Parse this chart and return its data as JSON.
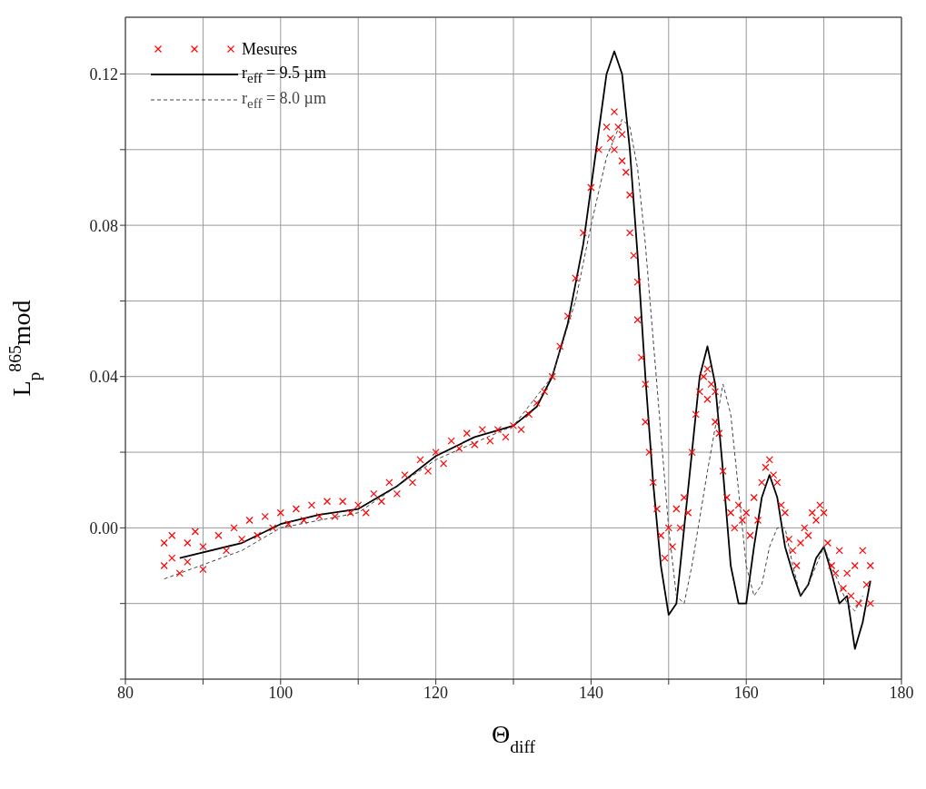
{
  "chart_data": {
    "type": "scatter",
    "xlabel": "Θ$_{diff}$",
    "ylabel": "L$_{p}$$^{865}$mod",
    "xlim": [
      80,
      180
    ],
    "xticks": [
      80,
      {
        "value": 90,
        "label": null
      },
      100,
      {
        "value": 110,
        "label": null
      },
      120,
      {
        "value": 130,
        "label": null
      },
      140,
      {
        "value": 150,
        "label": null
      },
      160,
      {
        "value": 170,
        "label": null
      },
      180
    ],
    "ylim": [
      -0.04,
      0.135
    ],
    "yticks": [
      {
        "value": -0.04,
        "label": null
      },
      {
        "value": -0.02,
        "label": null
      },
      {
        "value": 0,
        "label": "0.00"
      },
      {
        "value": 0.02,
        "label": null
      },
      {
        "value": 0.04,
        "label": "0.04"
      },
      {
        "value": 0.06,
        "label": null
      },
      {
        "value": 0.08,
        "label": "0.08"
      },
      {
        "value": 0.1,
        "label": null
      },
      {
        "value": 0.12,
        "label": "0.12"
      }
    ],
    "grid": true,
    "legend": "top left",
    "series": [
      {
        "name": "Mesures",
        "marker": "cross",
        "color": "#ff0000",
        "x": [
          85,
          85,
          86,
          86,
          87,
          88,
          88,
          89,
          90,
          90,
          92,
          93,
          94,
          95,
          96,
          97,
          98,
          99,
          100,
          101,
          102,
          103,
          104,
          105,
          106,
          107,
          108,
          109,
          110,
          111,
          112,
          113,
          114,
          115,
          116,
          117,
          118,
          119,
          120,
          121,
          122,
          123,
          124,
          125,
          126,
          127,
          128,
          129,
          130,
          131,
          132,
          133,
          134,
          135,
          136,
          137,
          138,
          139,
          140,
          141,
          142,
          142.5,
          143,
          143,
          143.5,
          144,
          144,
          144.5,
          145,
          145,
          145.5,
          146,
          146,
          146.5,
          147,
          147,
          147.5,
          148,
          148.5,
          149,
          149.5,
          150,
          150.5,
          151,
          151.5,
          152,
          152.5,
          153,
          153.5,
          154,
          154.5,
          155,
          155,
          155.5,
          156,
          156,
          156.5,
          157,
          157.5,
          158,
          158.5,
          159,
          159.5,
          160,
          160.5,
          161,
          161.5,
          162,
          162.5,
          163,
          163.5,
          164,
          164.5,
          165,
          165.5,
          166,
          166.5,
          167,
          167.5,
          168,
          168.5,
          169,
          169.5,
          170,
          170.5,
          171,
          171.5,
          172,
          172.5,
          173,
          173.5,
          174,
          174.5,
          175,
          175.5,
          176,
          176
        ],
        "values": [
          -0.004,
          -0.01,
          -0.002,
          -0.008,
          -0.012,
          -0.004,
          -0.009,
          -0.001,
          -0.005,
          -0.011,
          -0.002,
          -0.006,
          0,
          -0.003,
          0.002,
          -0.002,
          0.003,
          0,
          0.004,
          0.001,
          0.005,
          0.002,
          0.006,
          0.003,
          0.007,
          0.003,
          0.007,
          0.004,
          0.006,
          0.004,
          0.009,
          0.007,
          0.012,
          0.009,
          0.014,
          0.012,
          0.018,
          0.015,
          0.02,
          0.017,
          0.023,
          0.021,
          0.025,
          0.022,
          0.026,
          0.023,
          0.026,
          0.024,
          0.027,
          0.026,
          0.03,
          0.033,
          0.036,
          0.04,
          0.048,
          0.056,
          0.066,
          0.078,
          0.09,
          0.1,
          0.106,
          0.103,
          0.11,
          0.1,
          0.106,
          0.104,
          0.097,
          0.094,
          0.088,
          0.078,
          0.072,
          0.065,
          0.055,
          0.045,
          0.038,
          0.028,
          0.02,
          0.012,
          0.005,
          -0.002,
          -0.008,
          0,
          -0.005,
          0.005,
          0,
          0.008,
          0.004,
          0.02,
          0.03,
          0.036,
          0.04,
          0.042,
          0.034,
          0.038,
          0.036,
          0.028,
          0.025,
          0.015,
          0.008,
          0.004,
          0,
          0.006,
          0.002,
          0.004,
          -0.002,
          0.008,
          0.002,
          0.012,
          0.016,
          0.018,
          0.014,
          0.012,
          0.006,
          0.004,
          -0.003,
          -0.006,
          -0.01,
          -0.004,
          0,
          -0.002,
          0.004,
          0.002,
          0.006,
          0.004,
          -0.004,
          -0.01,
          -0.012,
          -0.006,
          -0.016,
          -0.012,
          -0.018,
          -0.01,
          -0.02,
          -0.006,
          -0.015,
          -0.02,
          -0.01
        ]
      },
      {
        "name": "r$_{eff}$ = 9.5 µm",
        "type": "line",
        "line_style": "solid",
        "color": "#000000",
        "x": [
          87,
          95,
          100,
          105,
          110,
          115,
          120,
          125,
          130,
          133,
          135,
          137,
          139,
          141,
          142,
          143,
          144,
          145,
          146,
          147,
          148,
          149,
          150,
          151,
          152,
          153,
          154,
          155,
          156,
          157,
          158,
          159,
          160,
          161,
          162,
          163,
          164,
          165,
          166,
          167,
          168,
          169,
          170,
          171,
          172,
          173,
          174,
          175,
          176
        ],
        "values": [
          -0.008,
          -0.004,
          0.001,
          0.0035,
          0.005,
          0.011,
          0.019,
          0.024,
          0.027,
          0.032,
          0.04,
          0.054,
          0.075,
          0.105,
          0.12,
          0.126,
          0.12,
          0.1,
          0.072,
          0.04,
          0.012,
          -0.01,
          -0.023,
          -0.02,
          0,
          0.02,
          0.04,
          0.048,
          0.038,
          0.015,
          -0.01,
          -0.02,
          -0.02,
          -0.005,
          0.008,
          0.014,
          0.008,
          -0.005,
          -0.012,
          -0.018,
          -0.015,
          -0.008,
          -0.005,
          -0.012,
          -0.02,
          -0.018,
          -0.032,
          -0.025,
          -0.014
        ]
      },
      {
        "name": "r$_{eff}$ = 8.0 µm",
        "type": "line",
        "line_style": "dashed",
        "color": "#444444",
        "x": [
          85,
          95,
          100,
          110,
          120,
          130,
          135,
          138,
          140,
          142,
          144,
          145,
          146,
          147,
          148,
          149,
          150,
          151,
          152,
          153,
          155,
          157,
          158,
          159,
          160,
          161,
          162,
          163,
          164,
          165,
          166,
          167,
          168,
          170,
          171,
          173,
          174,
          175
        ],
        "values": [
          -0.0135,
          -0.006,
          0,
          0.004,
          0.018,
          0.027,
          0.04,
          0.06,
          0.08,
          0.098,
          0.108,
          0.106,
          0.095,
          0.075,
          0.05,
          0.025,
          0,
          -0.018,
          -0.02,
          -0.01,
          0.015,
          0.038,
          0.03,
          0.01,
          -0.01,
          -0.018,
          -0.015,
          -0.005,
          0,
          0,
          -0.01,
          -0.018,
          -0.015,
          -0.005,
          -0.01,
          -0.02,
          -0.022,
          -0.018
        ]
      }
    ]
  }
}
